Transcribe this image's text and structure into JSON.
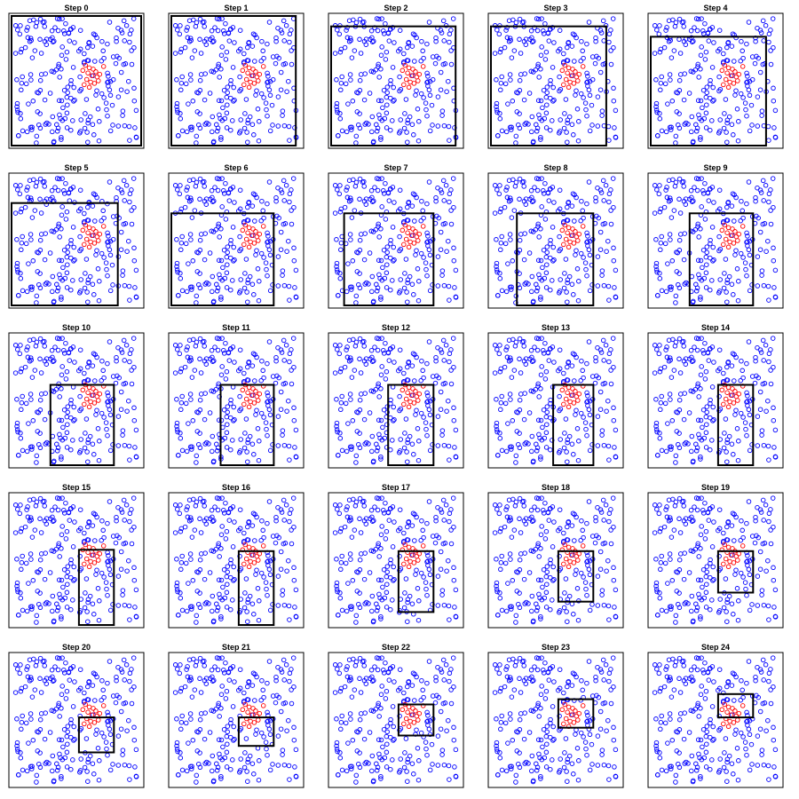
{
  "chart_data": {
    "type": "scatter",
    "layout": "5x5 small multiples",
    "axes_visible": false,
    "grid": false,
    "legend": "none",
    "x_range": [
      0,
      1
    ],
    "y_range": [
      0,
      1
    ],
    "colors": {
      "points": "#0000ff",
      "target_points": "#ff0000",
      "box": "#000000"
    },
    "target_points": [
      {
        "x": 0.55,
        "y": 0.58
      },
      {
        "x": 0.57,
        "y": 0.62
      },
      {
        "x": 0.59,
        "y": 0.56
      },
      {
        "x": 0.6,
        "y": 0.6
      },
      {
        "x": 0.62,
        "y": 0.54
      },
      {
        "x": 0.63,
        "y": 0.59
      },
      {
        "x": 0.65,
        "y": 0.57
      },
      {
        "x": 0.66,
        "y": 0.53
      },
      {
        "x": 0.58,
        "y": 0.51
      },
      {
        "x": 0.61,
        "y": 0.49
      },
      {
        "x": 0.64,
        "y": 0.48
      },
      {
        "x": 0.67,
        "y": 0.5
      },
      {
        "x": 0.56,
        "y": 0.47
      },
      {
        "x": 0.6,
        "y": 0.45
      },
      {
        "x": 0.68,
        "y": 0.55
      },
      {
        "x": 0.71,
        "y": 0.61
      }
    ],
    "background_point_count": 230,
    "steps": [
      {
        "title": "Step  0",
        "box": [
          0.0,
          1.0,
          0.0,
          1.0
        ]
      },
      {
        "title": "Step  1",
        "box": [
          0.0,
          0.96,
          0.0,
          1.0
        ]
      },
      {
        "title": "Step  2",
        "box": [
          0.0,
          0.96,
          0.0,
          0.92
        ]
      },
      {
        "title": "Step  3",
        "box": [
          0.0,
          0.89,
          0.0,
          0.92
        ]
      },
      {
        "title": "Step  4",
        "box": [
          0.0,
          0.89,
          0.0,
          0.84
        ]
      },
      {
        "title": "Step  5",
        "box": [
          0.0,
          0.82,
          0.0,
          0.79
        ]
      },
      {
        "title": "Step  6",
        "box": [
          0.0,
          0.79,
          0.0,
          0.71
        ]
      },
      {
        "title": "Step  7",
        "box": [
          0.1,
          0.79,
          0.0,
          0.71
        ]
      },
      {
        "title": "Step  8",
        "box": [
          0.2,
          0.79,
          0.0,
          0.71
        ]
      },
      {
        "title": "Step  9",
        "box": [
          0.3,
          0.79,
          0.0,
          0.71
        ]
      },
      {
        "title": "Step  10",
        "box": [
          0.3,
          0.79,
          0.0,
          0.62
        ]
      },
      {
        "title": "Step  11",
        "box": [
          0.38,
          0.79,
          0.0,
          0.62
        ]
      },
      {
        "title": "Step  12",
        "box": [
          0.44,
          0.79,
          0.0,
          0.62
        ]
      },
      {
        "title": "Step  13",
        "box": [
          0.48,
          0.79,
          0.0,
          0.62
        ]
      },
      {
        "title": "Step  14",
        "box": [
          0.52,
          0.79,
          0.0,
          0.62
        ]
      },
      {
        "title": "Step  15",
        "box": [
          0.52,
          0.79,
          0.0,
          0.58
        ]
      },
      {
        "title": "Step  16",
        "box": [
          0.52,
          0.79,
          0.0,
          0.57
        ]
      },
      {
        "title": "Step  17",
        "box": [
          0.52,
          0.79,
          0.1,
          0.57
        ]
      },
      {
        "title": "Step  18",
        "box": [
          0.52,
          0.79,
          0.18,
          0.57
        ]
      },
      {
        "title": "Step  19",
        "box": [
          0.52,
          0.79,
          0.25,
          0.57
        ]
      },
      {
        "title": "Step  20",
        "box": [
          0.52,
          0.79,
          0.25,
          0.52
        ]
      },
      {
        "title": "Step  21",
        "box": [
          0.52,
          0.79,
          0.3,
          0.52
        ]
      },
      {
        "title": "Step  22",
        "box": [
          0.52,
          0.79,
          0.38,
          0.62
        ]
      },
      {
        "title": "Step  23",
        "box": [
          0.52,
          0.79,
          0.44,
          0.66
        ]
      },
      {
        "title": "Step  24",
        "box": [
          0.52,
          0.79,
          0.52,
          0.7
        ]
      }
    ]
  }
}
